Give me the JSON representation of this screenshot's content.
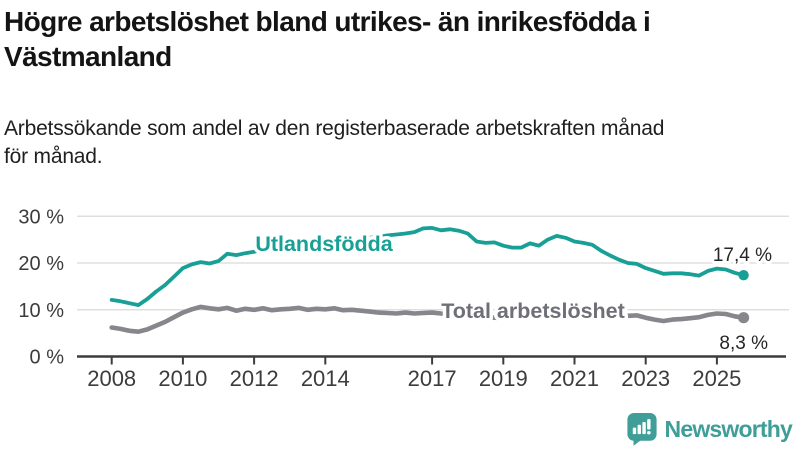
{
  "title": {
    "line1": "Högre arbetslöshet bland utrikes- än inrikesfödda i",
    "line2": "Västmanland"
  },
  "subtitle": {
    "line1": "Arbetssökande som andel av den registerbaserade arbetskraften månad",
    "line2": "för månad."
  },
  "footer": {
    "brand": "Newsworthy",
    "logo_icon": "chart-speech-bubble-icon"
  },
  "colors": {
    "utlandsfodda": "#18a096",
    "total_line": "#86868d",
    "total_label": "#6f6f77",
    "value_label": "#262626",
    "grid": "#d9d9d9",
    "axis": "#3c3c3c",
    "title": "#141414",
    "brand": "#3f9e97",
    "background": "#ffffff"
  },
  "chart_data": {
    "type": "line",
    "title": "Högre arbetslöshet bland utrikes- än inrikesfödda i Västmanland",
    "subtitle": "Arbetssökande som andel av den registerbaserade arbetskraften månad för månad.",
    "y_unit": "%",
    "decimal_separator": ",",
    "grid": true,
    "legend_position": "inline-labels",
    "ylim": [
      0,
      32
    ],
    "xlim_years": [
      2007.6,
      2026.3
    ],
    "y_ticks": [
      0,
      10,
      20,
      30
    ],
    "y_tick_suffix": " %",
    "x_label_years": [
      2008,
      2010,
      2012,
      2014,
      2017,
      2019,
      2021,
      2023,
      2025
    ],
    "x": [
      2008,
      2008.25,
      2008.5,
      2008.75,
      2009,
      2009.25,
      2009.5,
      2009.75,
      2010,
      2010.25,
      2010.5,
      2010.75,
      2011,
      2011.25,
      2011.5,
      2011.75,
      2012,
      2012.25,
      2012.5,
      2012.75,
      2013,
      2013.25,
      2013.5,
      2013.75,
      2014,
      2014.25,
      2014.5,
      2014.75,
      2015,
      2015.25,
      2015.5,
      2015.75,
      2016,
      2016.25,
      2016.5,
      2016.75,
      2017,
      2017.25,
      2017.5,
      2017.75,
      2018,
      2018.25,
      2018.5,
      2018.75,
      2019,
      2019.25,
      2019.5,
      2019.75,
      2020,
      2020.25,
      2020.5,
      2020.75,
      2021,
      2021.25,
      2021.5,
      2021.75,
      2022,
      2022.25,
      2022.5,
      2022.75,
      2023,
      2023.25,
      2023.5,
      2023.75,
      2024,
      2024.25,
      2024.5,
      2024.75,
      2025,
      2025.25,
      2025.5,
      2025.75
    ],
    "series": [
      {
        "name": "Utlandsfödda",
        "color": "#18a096",
        "end_label": "17,4 %",
        "end_value": 17.4,
        "values": [
          12.1,
          11.8,
          11.4,
          11.0,
          12.3,
          13.9,
          15.3,
          17.1,
          18.9,
          19.7,
          20.2,
          19.9,
          20.4,
          22.0,
          21.7,
          22.1,
          22.4,
          23.1,
          22.8,
          23.0,
          23.2,
          23.5,
          23.7,
          24.0,
          24.2,
          24.5,
          24.7,
          24.9,
          25.1,
          25.4,
          25.6,
          25.9,
          26.1,
          26.3,
          26.6,
          27.4,
          27.5,
          27.0,
          27.2,
          26.9,
          26.3,
          24.6,
          24.3,
          24.4,
          23.7,
          23.3,
          23.3,
          24.2,
          23.7,
          25.0,
          25.8,
          25.4,
          24.6,
          24.3,
          23.9,
          22.6,
          21.6,
          20.7,
          20.0,
          19.8,
          18.9,
          18.3,
          17.7,
          17.8,
          17.8,
          17.6,
          17.3,
          18.3,
          18.8,
          18.6,
          17.9,
          17.4
        ]
      },
      {
        "name": "Total arbetslöshet",
        "color": "#86868d",
        "end_label": "8,3 %",
        "end_value": 8.3,
        "values": [
          6.2,
          5.9,
          5.5,
          5.3,
          5.8,
          6.6,
          7.4,
          8.4,
          9.4,
          10.1,
          10.6,
          10.3,
          10.1,
          10.4,
          9.8,
          10.2,
          10.0,
          10.3,
          9.9,
          10.1,
          10.2,
          10.4,
          10.0,
          10.2,
          10.1,
          10.3,
          9.9,
          10.0,
          9.8,
          9.6,
          9.4,
          9.3,
          9.2,
          9.4,
          9.2,
          9.3,
          9.4,
          9.2,
          9.1,
          8.9,
          8.7,
          8.5,
          8.4,
          8.3,
          8.2,
          8.3,
          8.4,
          8.6,
          8.8,
          9.4,
          9.6,
          9.4,
          9.2,
          9.0,
          8.8,
          8.6,
          8.5,
          8.4,
          8.7,
          8.8,
          8.3,
          7.9,
          7.6,
          7.9,
          8.0,
          8.2,
          8.4,
          8.9,
          9.2,
          9.1,
          8.6,
          8.3
        ]
      }
    ]
  }
}
